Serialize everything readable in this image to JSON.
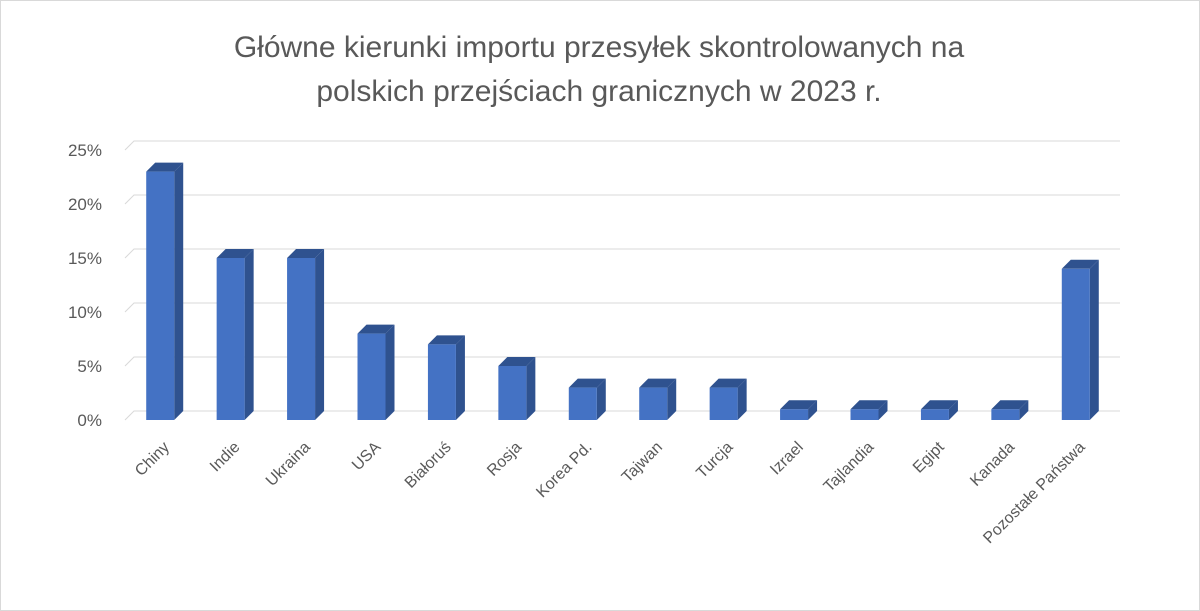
{
  "chart_data": {
    "type": "bar",
    "title_lines": [
      "Główne kierunki importu przesyłek skontrolowanych na",
      "polskich przejściach granicznych w 2023 r."
    ],
    "categories": [
      "Chiny",
      "Indie",
      "Ukraina",
      "USA",
      "Białoruś",
      "Rosja",
      "Korea Pd.",
      "Tajwan",
      "Turcja",
      "Izrael",
      "Tajlandia",
      "Egipt",
      "Kanada",
      "Pozostałe Państwa"
    ],
    "values": [
      23,
      15,
      15,
      8,
      7,
      5,
      3,
      3,
      3,
      1,
      1,
      1,
      1,
      14
    ],
    "value_unit": "%",
    "y_ticks": [
      0,
      5,
      10,
      15,
      20,
      25
    ],
    "y_tick_labels": [
      "0%",
      "5%",
      "10%",
      "15%",
      "20%",
      "25%"
    ],
    "ylim": [
      0,
      25
    ],
    "grid": true,
    "bar_style": "3d",
    "colors": {
      "bar_front": "#4472c4",
      "bar_side": "#2f528f",
      "bar_top": "#2f528f",
      "grid": "#d9d9d9",
      "text": "#595959"
    }
  }
}
